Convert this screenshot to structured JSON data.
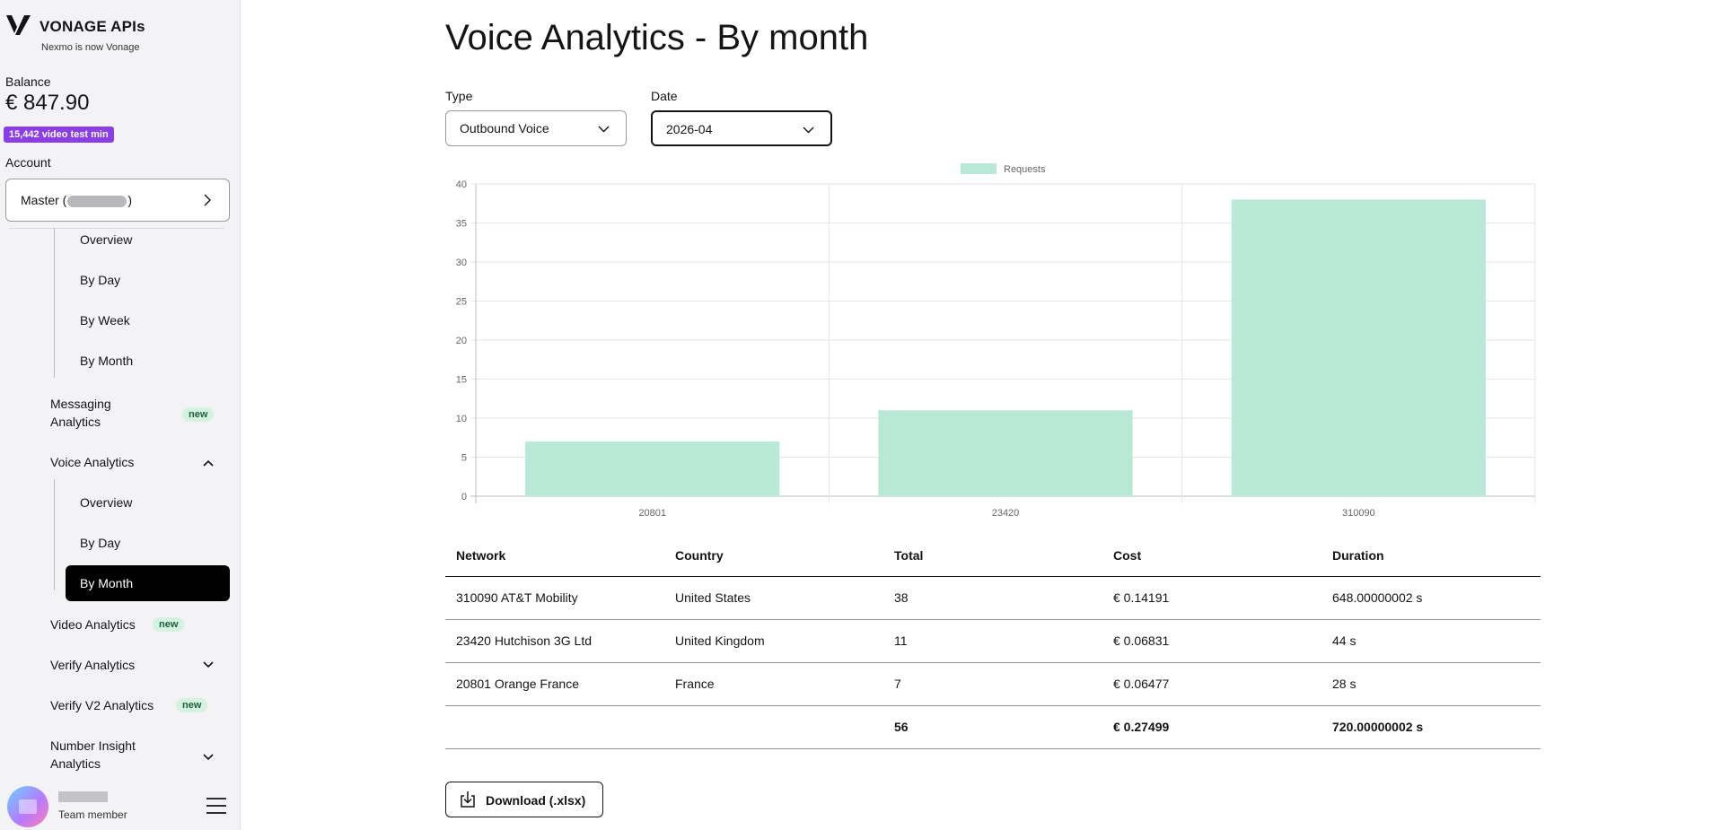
{
  "brand": {
    "name": "VONAGE APIs",
    "tagline": "Nexmo is now Vonage"
  },
  "balance": {
    "label": "Balance",
    "value": "€ 847.90"
  },
  "video_badge": "15,442 video test min",
  "account": {
    "label": "Account",
    "prefix": "Master (",
    "suffix": ")"
  },
  "nav": {
    "usage_sub": [
      "Overview",
      "By Day",
      "By Week",
      "By Month"
    ],
    "messaging": {
      "label": "Messaging Analytics",
      "badge": "new"
    },
    "voice": {
      "label": "Voice Analytics",
      "sub": [
        "Overview",
        "By Day",
        "By Month"
      ],
      "active": "By Month"
    },
    "video": {
      "label": "Video Analytics",
      "badge": "new"
    },
    "verify": {
      "label": "Verify Analytics"
    },
    "verify_v2": {
      "label": "Verify V2 Analytics",
      "badge": "new"
    },
    "number_insight": {
      "label": "Number Insight Analytics"
    }
  },
  "user": {
    "role": "Team member"
  },
  "page": {
    "title": "Voice Analytics - By month"
  },
  "filters": {
    "type": {
      "label": "Type",
      "value": "Outbound Voice"
    },
    "date": {
      "label": "Date",
      "value": "2026-04"
    }
  },
  "chart_data": {
    "type": "bar",
    "title": "",
    "xlabel": "",
    "ylabel": "",
    "categories": [
      "20801",
      "23420",
      "310090"
    ],
    "series": [
      {
        "name": "Requests",
        "values": [
          7,
          11,
          38
        ]
      }
    ],
    "ylim": [
      0,
      40
    ],
    "yticks": [
      0,
      5,
      10,
      15,
      20,
      25,
      30,
      35,
      40
    ],
    "legend": "top-center",
    "grid": true,
    "colors": {
      "bar": "#b9e8d6",
      "grid": "#e6e6e6",
      "axis": "#bdbdbd",
      "text": "#666666"
    }
  },
  "table": {
    "headers": [
      "Network",
      "Country",
      "Total",
      "Cost",
      "Duration"
    ],
    "rows": [
      [
        "310090 AT&T Mobility",
        "United States",
        "38",
        "€ 0.14191",
        "648.00000002 s"
      ],
      [
        "23420 Hutchison 3G Ltd",
        "United Kingdom",
        "11",
        "€ 0.06831",
        "44 s"
      ],
      [
        "20801 Orange France",
        "France",
        "7",
        "€ 0.06477",
        "28 s"
      ]
    ],
    "totals": [
      "",
      "",
      "56",
      "€ 0.27499",
      "720.00000002 s"
    ]
  },
  "download": {
    "label": "Download (.xlsx)"
  }
}
